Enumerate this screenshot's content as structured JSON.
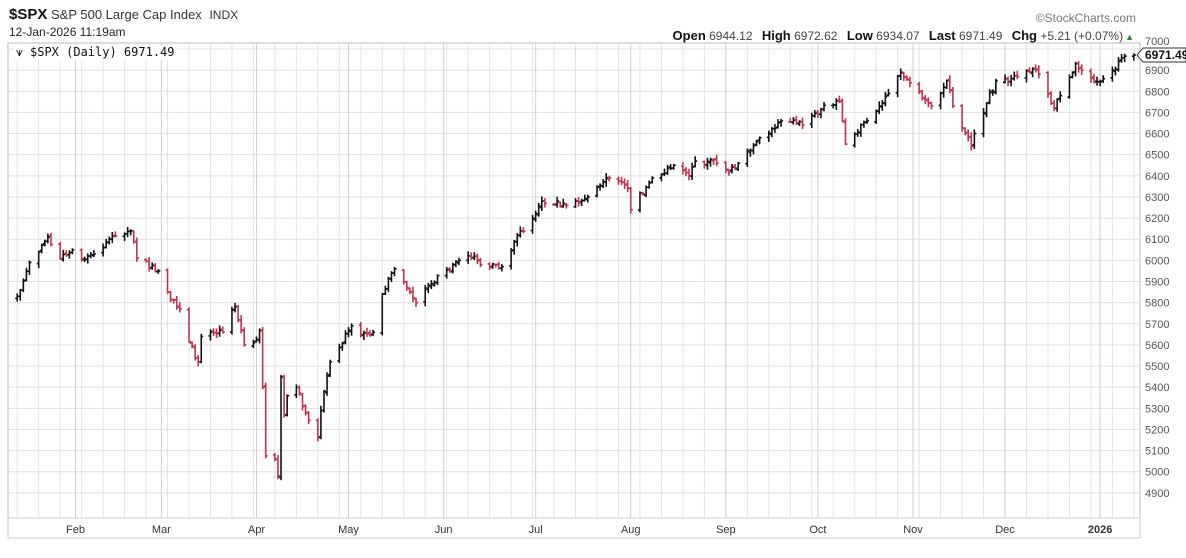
{
  "header": {
    "symbol": "$SPX",
    "name": "S&P 500 Large Cap Index",
    "exchange": "INDX",
    "timestamp": "12-Jan-2026 11:19am",
    "brand": "©StockCharts.com",
    "open_label": "Open",
    "open": "6944.12",
    "high_label": "High",
    "high": "6972.62",
    "low_label": "Low",
    "low": "6934.07",
    "last_label": "Last",
    "last": "6971.49",
    "chg_label": "Chg",
    "chg": "+5.21 (+0.07%)",
    "chg_icon": "up-triangle-icon"
  },
  "legend": {
    "icon": "ohlc-bar-icon",
    "text": "$SPX (Daily) 6971.49"
  },
  "last_tag": "6971.49",
  "colors": {
    "up": "#111111",
    "down": "#c0334f",
    "grid": "#dddddd",
    "tag": "#f6f3c8"
  },
  "chart_data": {
    "type": "ohlc-bar",
    "title": "$SPX S&P 500 Large Cap Index",
    "xlabel": "",
    "ylabel": "",
    "ylim": [
      4800,
      7000
    ],
    "yticks": [
      "7000",
      "6900",
      "6800",
      "6700",
      "6600",
      "6500",
      "6400",
      "6300",
      "6200",
      "6100",
      "6000",
      "5900",
      "5800",
      "5700",
      "5600",
      "5500",
      "5400",
      "5300",
      "5200",
      "5100",
      "5000",
      "4900"
    ],
    "xticks": [
      {
        "label": "Feb",
        "date": "2025-02-01"
      },
      {
        "label": "Mar",
        "date": "2025-03-01"
      },
      {
        "label": "Apr",
        "date": "2025-04-01"
      },
      {
        "label": "May",
        "date": "2025-05-01"
      },
      {
        "label": "Jun",
        "date": "2025-06-01"
      },
      {
        "label": "Jul",
        "date": "2025-07-01"
      },
      {
        "label": "Aug",
        "date": "2025-08-01"
      },
      {
        "label": "Sep",
        "date": "2025-09-01"
      },
      {
        "label": "Oct",
        "date": "2025-10-01"
      },
      {
        "label": "Nov",
        "date": "2025-11-01"
      },
      {
        "label": "Dec",
        "date": "2025-12-01"
      },
      {
        "label": "2026",
        "date": "2026-01-01"
      }
    ],
    "xrange": [
      "2025-01-10",
      "2026-01-14"
    ],
    "approx_closes": [
      [
        "2025-01-13",
        5830
      ],
      [
        "2025-01-17",
        5990
      ],
      [
        "2025-01-23",
        6110
      ],
      [
        "2025-01-27",
        6010
      ],
      [
        "2025-01-31",
        6050
      ],
      [
        "2025-02-03",
        6000
      ],
      [
        "2025-02-07",
        6030
      ],
      [
        "2025-02-14",
        6115
      ],
      [
        "2025-02-19",
        6140
      ],
      [
        "2025-02-21",
        6010
      ],
      [
        "2025-02-28",
        5950
      ],
      [
        "2025-03-03",
        5850
      ],
      [
        "2025-03-07",
        5770
      ],
      [
        "2025-03-10",
        5615
      ],
      [
        "2025-03-13",
        5520
      ],
      [
        "2025-03-14",
        5640
      ],
      [
        "2025-03-21",
        5660
      ],
      [
        "2025-03-25",
        5780
      ],
      [
        "2025-03-28",
        5600
      ],
      [
        "2025-03-31",
        5610
      ],
      [
        "2025-04-02",
        5670
      ],
      [
        "2025-04-03",
        5400
      ],
      [
        "2025-04-04",
        5075
      ],
      [
        "2025-04-07",
        5060
      ],
      [
        "2025-04-08",
        4980
      ],
      [
        "2025-04-09",
        5450
      ],
      [
        "2025-04-10",
        5270
      ],
      [
        "2025-04-11",
        5360
      ],
      [
        "2025-04-14",
        5400
      ],
      [
        "2025-04-17",
        5280
      ],
      [
        "2025-04-21",
        5160
      ],
      [
        "2025-04-22",
        5290
      ],
      [
        "2025-04-25",
        5520
      ],
      [
        "2025-05-02",
        5690
      ],
      [
        "2025-05-05",
        5650
      ],
      [
        "2025-05-09",
        5660
      ],
      [
        "2025-05-12",
        5840
      ],
      [
        "2025-05-16",
        5960
      ],
      [
        "2025-05-21",
        5850
      ],
      [
        "2025-05-23",
        5800
      ],
      [
        "2025-05-28",
        5890
      ],
      [
        "2025-06-06",
        6000
      ],
      [
        "2025-06-11",
        6020
      ],
      [
        "2025-06-13",
        5980
      ],
      [
        "2025-06-20",
        5970
      ],
      [
        "2025-06-24",
        6090
      ],
      [
        "2025-06-30",
        6200
      ],
      [
        "2025-07-03",
        6280
      ],
      [
        "2025-07-11",
        6260
      ],
      [
        "2025-07-18",
        6300
      ],
      [
        "2025-07-25",
        6390
      ],
      [
        "2025-07-31",
        6340
      ],
      [
        "2025-08-01",
        6240
      ],
      [
        "2025-08-08",
        6390
      ],
      [
        "2025-08-15",
        6450
      ],
      [
        "2025-08-20",
        6400
      ],
      [
        "2025-08-22",
        6470
      ],
      [
        "2025-08-29",
        6460
      ],
      [
        "2025-09-02",
        6420
      ],
      [
        "2025-09-12",
        6580
      ],
      [
        "2025-09-19",
        6660
      ],
      [
        "2025-09-26",
        6640
      ],
      [
        "2025-10-02",
        6715
      ],
      [
        "2025-10-08",
        6750
      ],
      [
        "2025-10-10",
        6550
      ],
      [
        "2025-10-17",
        6660
      ],
      [
        "2025-10-24",
        6790
      ],
      [
        "2025-10-28",
        6890
      ],
      [
        "2025-10-31",
        6840
      ],
      [
        "2025-11-04",
        6770
      ],
      [
        "2025-11-07",
        6730
      ],
      [
        "2025-11-12",
        6850
      ],
      [
        "2025-11-14",
        6730
      ],
      [
        "2025-11-20",
        6540
      ],
      [
        "2025-11-21",
        6600
      ],
      [
        "2025-11-28",
        6850
      ],
      [
        "2025-12-05",
        6870
      ],
      [
        "2025-12-11",
        6900
      ],
      [
        "2025-12-17",
        6720
      ],
      [
        "2025-12-24",
        6930
      ],
      [
        "2025-12-31",
        6845
      ],
      [
        "2026-01-05",
        6900
      ],
      [
        "2026-01-09",
        6966
      ],
      [
        "2026-01-12",
        6971.49
      ]
    ]
  }
}
